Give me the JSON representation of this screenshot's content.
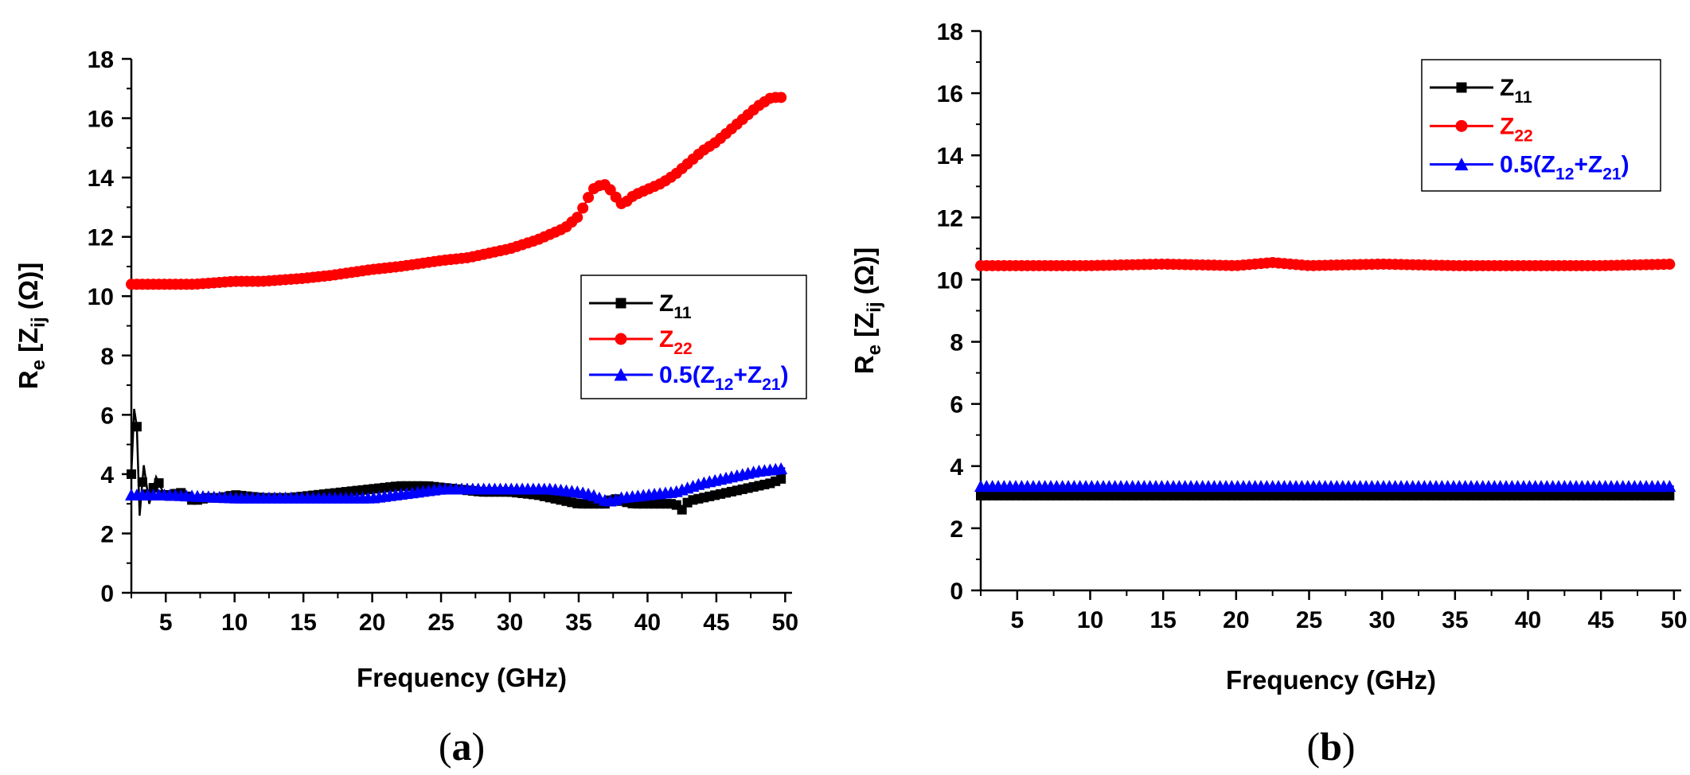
{
  "colors": {
    "z11": "#000000",
    "z22": "#ff0000",
    "z12": "#0000ff"
  },
  "chart_data": [
    {
      "type": "line",
      "panel_label": "a",
      "xlabel": "Frequency (GHz)",
      "ylabel": {
        "prefix": "R",
        "prefix_sub": "e",
        "main": " [Z",
        "main_sub": "ij",
        "suffix": " (Ω)]"
      },
      "xlim": [
        2.5,
        50.5
      ],
      "ylim": [
        0,
        18
      ],
      "xticks": [
        "5",
        "10",
        "15",
        "20",
        "25",
        "30",
        "35",
        "40",
        "45",
        "50"
      ],
      "yticks": [
        "0",
        "2",
        "4",
        "6",
        "8",
        "10",
        "12",
        "14",
        "16",
        "18"
      ],
      "legend_position": "center-right",
      "series": [
        {
          "name": "Z11",
          "label": "Z",
          "label_sub": "11",
          "color": "#000000",
          "marker": "square",
          "x": [
            2.5,
            2.7,
            2.9,
            3.1,
            3.4,
            3.8,
            4.3,
            5,
            6,
            7,
            8,
            9,
            10,
            12,
            14,
            16,
            18,
            20,
            22,
            24,
            26,
            28,
            30,
            32,
            34,
            35,
            36,
            37,
            37.5,
            38,
            39,
            40,
            41,
            42,
            42.5,
            43,
            44,
            45,
            46,
            47,
            48,
            49,
            50
          ],
          "values": [
            4.0,
            6.2,
            5.6,
            2.6,
            4.3,
            3.0,
            3.9,
            3.2,
            3.4,
            3.1,
            3.2,
            3.2,
            3.3,
            3.2,
            3.2,
            3.3,
            3.4,
            3.5,
            3.6,
            3.6,
            3.5,
            3.4,
            3.4,
            3.3,
            3.1,
            3.0,
            3.0,
            3.0,
            3.2,
            3.1,
            3.0,
            3.0,
            3.0,
            3.0,
            2.8,
            3.1,
            3.2,
            3.3,
            3.4,
            3.5,
            3.6,
            3.7,
            3.9
          ]
        },
        {
          "name": "Z22",
          "label": "Z",
          "label_sub": "22",
          "color": "#ff0000",
          "marker": "circle",
          "x": [
            2.5,
            5,
            7,
            10,
            12,
            15,
            17,
            20,
            22,
            25,
            27,
            30,
            32,
            34,
            35,
            36,
            36.8,
            37.5,
            38,
            38.5,
            39,
            40,
            41,
            42,
            43,
            44,
            45,
            46,
            47,
            48,
            49,
            50
          ],
          "values": [
            10.4,
            10.4,
            10.4,
            10.5,
            10.5,
            10.6,
            10.7,
            10.9,
            11.0,
            11.2,
            11.3,
            11.6,
            11.9,
            12.3,
            12.7,
            13.6,
            13.8,
            13.5,
            13.1,
            13.2,
            13.4,
            13.6,
            13.8,
            14.1,
            14.5,
            14.9,
            15.2,
            15.6,
            16.0,
            16.4,
            16.7,
            16.7
          ]
        },
        {
          "name": "0.5(Z12+Z21)",
          "label": "0.5(Z",
          "label_sub": "12",
          "label_mid": "+Z",
          "label_sub2": "21",
          "label_end": ")",
          "color": "#0000ff",
          "marker": "triangle",
          "x": [
            2.5,
            5,
            10,
            15,
            20,
            25,
            30,
            33,
            35,
            36,
            37,
            37.5,
            38,
            40,
            42,
            44,
            46,
            48,
            50
          ],
          "values": [
            3.3,
            3.3,
            3.2,
            3.2,
            3.2,
            3.5,
            3.5,
            3.5,
            3.4,
            3.3,
            3.1,
            3.1,
            3.2,
            3.3,
            3.4,
            3.7,
            3.9,
            4.1,
            4.2
          ]
        }
      ]
    },
    {
      "type": "line",
      "panel_label": "b",
      "xlabel": "Frequency (GHz)",
      "ylabel": {
        "prefix": "R",
        "prefix_sub": "e",
        "main": " [Z",
        "main_sub": "ij",
        "suffix": " (Ω)]"
      },
      "xlim": [
        2.5,
        50.5
      ],
      "ylim": [
        0,
        18
      ],
      "xticks": [
        "5",
        "10",
        "15",
        "20",
        "25",
        "30",
        "35",
        "40",
        "45",
        "50"
      ],
      "yticks": [
        "0",
        "2",
        "4",
        "6",
        "8",
        "10",
        "12",
        "14",
        "16",
        "18"
      ],
      "legend_position": "top-right",
      "series": [
        {
          "name": "Z11",
          "label": "Z",
          "label_sub": "11",
          "color": "#000000",
          "marker": "square",
          "x": [
            2.5,
            10,
            20,
            30,
            40,
            50
          ],
          "values": [
            3.05,
            3.05,
            3.05,
            3.05,
            3.05,
            3.05
          ]
        },
        {
          "name": "Z22",
          "label": "Z",
          "label_sub": "22",
          "color": "#ff0000",
          "marker": "circle",
          "x": [
            2.5,
            10,
            15,
            20,
            22.5,
            25,
            30,
            35,
            40,
            45,
            50
          ],
          "values": [
            10.45,
            10.45,
            10.5,
            10.45,
            10.55,
            10.45,
            10.5,
            10.45,
            10.45,
            10.45,
            10.5
          ]
        },
        {
          "name": "0.5(Z12+Z21)",
          "label": "0.5(Z",
          "label_sub": "12",
          "label_mid": "+Z",
          "label_sub2": "21",
          "label_end": ")",
          "color": "#0000ff",
          "marker": "triangle",
          "x": [
            2.5,
            10,
            20,
            30,
            40,
            50
          ],
          "values": [
            3.35,
            3.35,
            3.35,
            3.35,
            3.35,
            3.35
          ]
        }
      ]
    }
  ]
}
